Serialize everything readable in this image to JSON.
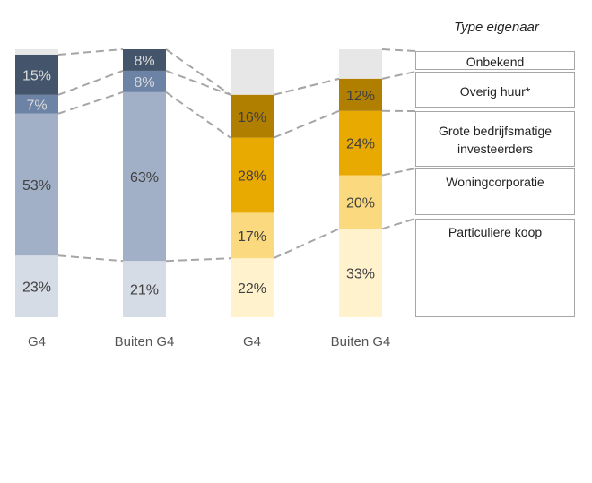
{
  "chart_data": {
    "type": "bar",
    "stacked": true,
    "normalized": true,
    "title": "",
    "legend_title": "Type eigenaar",
    "categories": [
      "G4",
      "Buiten G4",
      "G4",
      "Buiten G4"
    ],
    "series": [
      {
        "name": "Particuliere koop",
        "values": [
          23,
          21,
          22,
          33
        ],
        "colors": [
          "#d6dce6",
          "#d6dce6",
          "#fff2cc",
          "#fff2cc"
        ]
      },
      {
        "name": "Woningcorporatie",
        "values": [
          53,
          63,
          17,
          20
        ],
        "colors": [
          "#a2b0c7",
          "#a2b0c7",
          "#fbd97e",
          "#fbd97e"
        ]
      },
      {
        "name": "Grote bedrijfsmatige investeerders",
        "values": [
          0,
          0,
          28,
          24
        ],
        "colors": [
          "#a2b0c7",
          "#a2b0c7",
          "#e8a900",
          "#e8a900"
        ]
      },
      {
        "name": "Overig huur*",
        "values": [
          7,
          8,
          16,
          12
        ],
        "colors": [
          "#6d83a6",
          "#6d83a6",
          "#b07f00",
          "#b07f00"
        ]
      },
      {
        "name": "Onbekend",
        "values": [
          15,
          8,
          0,
          0
        ],
        "colors": [
          "#44546a",
          "#44546a",
          "#e7e7e7",
          "#e7e7e7"
        ]
      }
    ],
    "remainder_color": "#e7e7e7",
    "data_labels": [
      [
        "23%",
        "53%",
        "7%",
        "15%"
      ],
      [
        "21%",
        "63%",
        "8%",
        "8%"
      ],
      [
        "22%",
        "17%",
        "28%",
        "16%"
      ],
      [
        "33%",
        "20%",
        "24%",
        "12%"
      ]
    ],
    "ylim": [
      0,
      100
    ],
    "grid": false,
    "legend_position": "right"
  }
}
